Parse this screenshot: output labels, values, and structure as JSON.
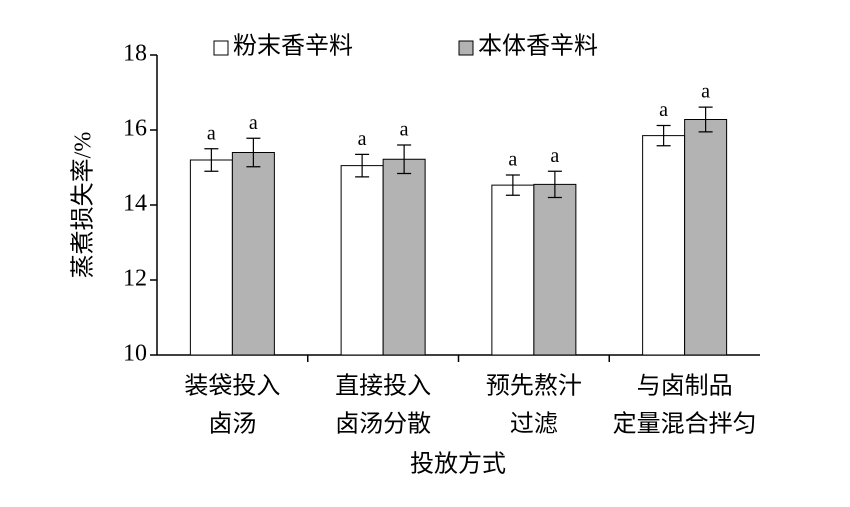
{
  "chart_data": {
    "type": "bar",
    "y_label": "蒸煮损失率/%",
    "x_label": "投放方式",
    "categories": [
      [
        "装袋投入",
        "卤汤"
      ],
      [
        "直接投入",
        "卤汤分散"
      ],
      [
        "预先熬汁",
        "过滤"
      ],
      [
        "与卤制品",
        "定量混合拌匀"
      ]
    ],
    "series": [
      {
        "name": "粉末香辛料",
        "color": "#ffffff",
        "values": [
          15.2,
          15.05,
          14.53,
          15.85
        ],
        "errors": [
          0.3,
          0.3,
          0.27,
          0.27
        ],
        "significance": [
          "a",
          "a",
          "a",
          "a"
        ]
      },
      {
        "name": "本体香辛料",
        "color": "#b3b3b3",
        "values": [
          15.4,
          15.22,
          14.55,
          16.28
        ],
        "errors": [
          0.38,
          0.38,
          0.35,
          0.33
        ],
        "significance": [
          "a",
          "a",
          "a",
          "a"
        ]
      }
    ],
    "ylim": [
      10,
      18
    ],
    "yticks": [
      10,
      12,
      14,
      16,
      18
    ]
  }
}
